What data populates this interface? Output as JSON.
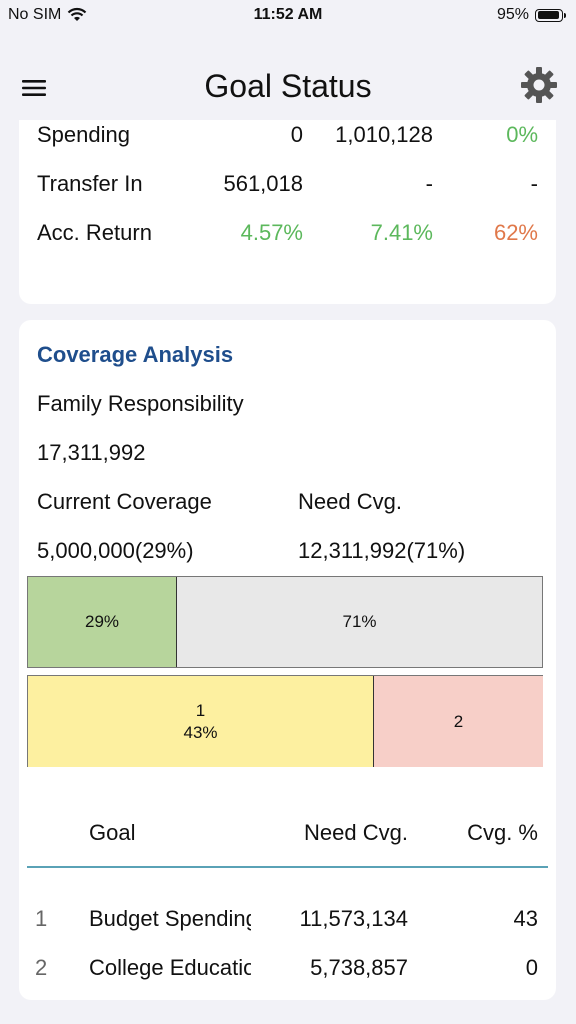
{
  "status_bar": {
    "carrier": "No SIM",
    "time": "11:52 AM",
    "battery": "95%"
  },
  "nav": {
    "title": "Goal Status"
  },
  "summary_rows": [
    {
      "label": "Spending",
      "v1": "0",
      "v2": "1,010,128",
      "v3": "0%"
    },
    {
      "label": "Transfer In",
      "v1": "561,018",
      "v2": "-",
      "v3": "-"
    },
    {
      "label": "Acc. Return",
      "v1": "4.57%",
      "v2": "7.41%",
      "v3": "62%"
    }
  ],
  "coverage": {
    "title": "Coverage Analysis",
    "family_label": "Family Responsibility",
    "family_value": "17,311,992",
    "current_label": "Current Coverage",
    "need_label": "Need Cvg.",
    "current_value": "5,000,000(29%)",
    "need_value": "12,311,992(71%)",
    "bar1": [
      {
        "label": "29%",
        "fraction": 0.29,
        "color": "#b7d59c"
      },
      {
        "label": "71%",
        "fraction": 0.71,
        "color": "#e8e8e8"
      }
    ],
    "bar2": [
      {
        "index": "1",
        "label": "43%",
        "color": "#fdf0a0"
      },
      {
        "index": "2",
        "label": "",
        "color": "#f7cfc8"
      }
    ]
  },
  "goals_table": {
    "headers": {
      "goal": "Goal",
      "need": "Need Cvg.",
      "pct": "Cvg. %"
    },
    "rows": [
      {
        "index": "1",
        "goal": "Budget Spending",
        "need": "11,573,134",
        "pct": "43"
      },
      {
        "index": "2",
        "goal": "College Education",
        "need": "5,738,857",
        "pct": "0"
      }
    ]
  }
}
